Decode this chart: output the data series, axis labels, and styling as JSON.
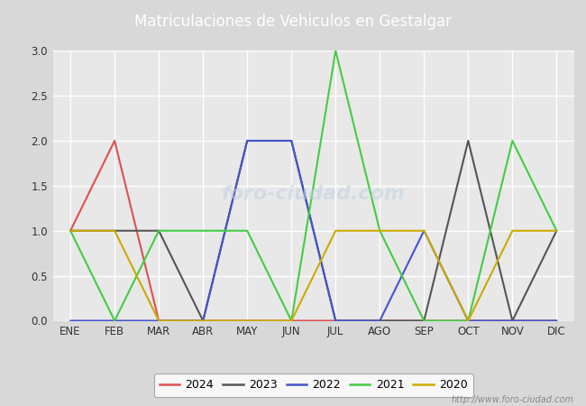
{
  "title": "Matriculaciones de Vehiculos en Gestalgar",
  "title_bg_color": "#5b7fc4",
  "title_text_color": "#ffffff",
  "months": [
    "ENE",
    "FEB",
    "MAR",
    "ABR",
    "MAY",
    "JUN",
    "JUL",
    "AGO",
    "SEP",
    "OCT",
    "NOV",
    "DIC"
  ],
  "series": [
    {
      "label": "2024",
      "color": "#e05050",
      "data": [
        1,
        2,
        0,
        0,
        0,
        0,
        0,
        0,
        0,
        0,
        0,
        0
      ]
    },
    {
      "label": "2023",
      "color": "#555555",
      "data": [
        1,
        1,
        1,
        0,
        2,
        2,
        0,
        0,
        0,
        2,
        0,
        1
      ]
    },
    {
      "label": "2022",
      "color": "#4455cc",
      "data": [
        0,
        0,
        0,
        0,
        2,
        2,
        0,
        0,
        1,
        0,
        0,
        0
      ]
    },
    {
      "label": "2021",
      "color": "#44cc44",
      "data": [
        1,
        0,
        1,
        1,
        1,
        0,
        3,
        1,
        0,
        0,
        2,
        1
      ]
    },
    {
      "label": "2020",
      "color": "#ccaa00",
      "data": [
        1,
        1,
        0,
        0,
        0,
        0,
        1,
        1,
        1,
        0,
        1,
        1
      ]
    }
  ],
  "ylim": [
    0,
    3.0
  ],
  "yticks": [
    0.0,
    0.5,
    1.0,
    1.5,
    2.0,
    2.5,
    3.0
  ],
  "fig_bg_color": "#d8d8d8",
  "plot_bg_color": "#e8e8e8",
  "grid_color": "#ffffff",
  "watermark_plot": "foro-ciudad.com",
  "watermark_url": "http://www.foro-ciudad.com",
  "linewidth": 1.5
}
